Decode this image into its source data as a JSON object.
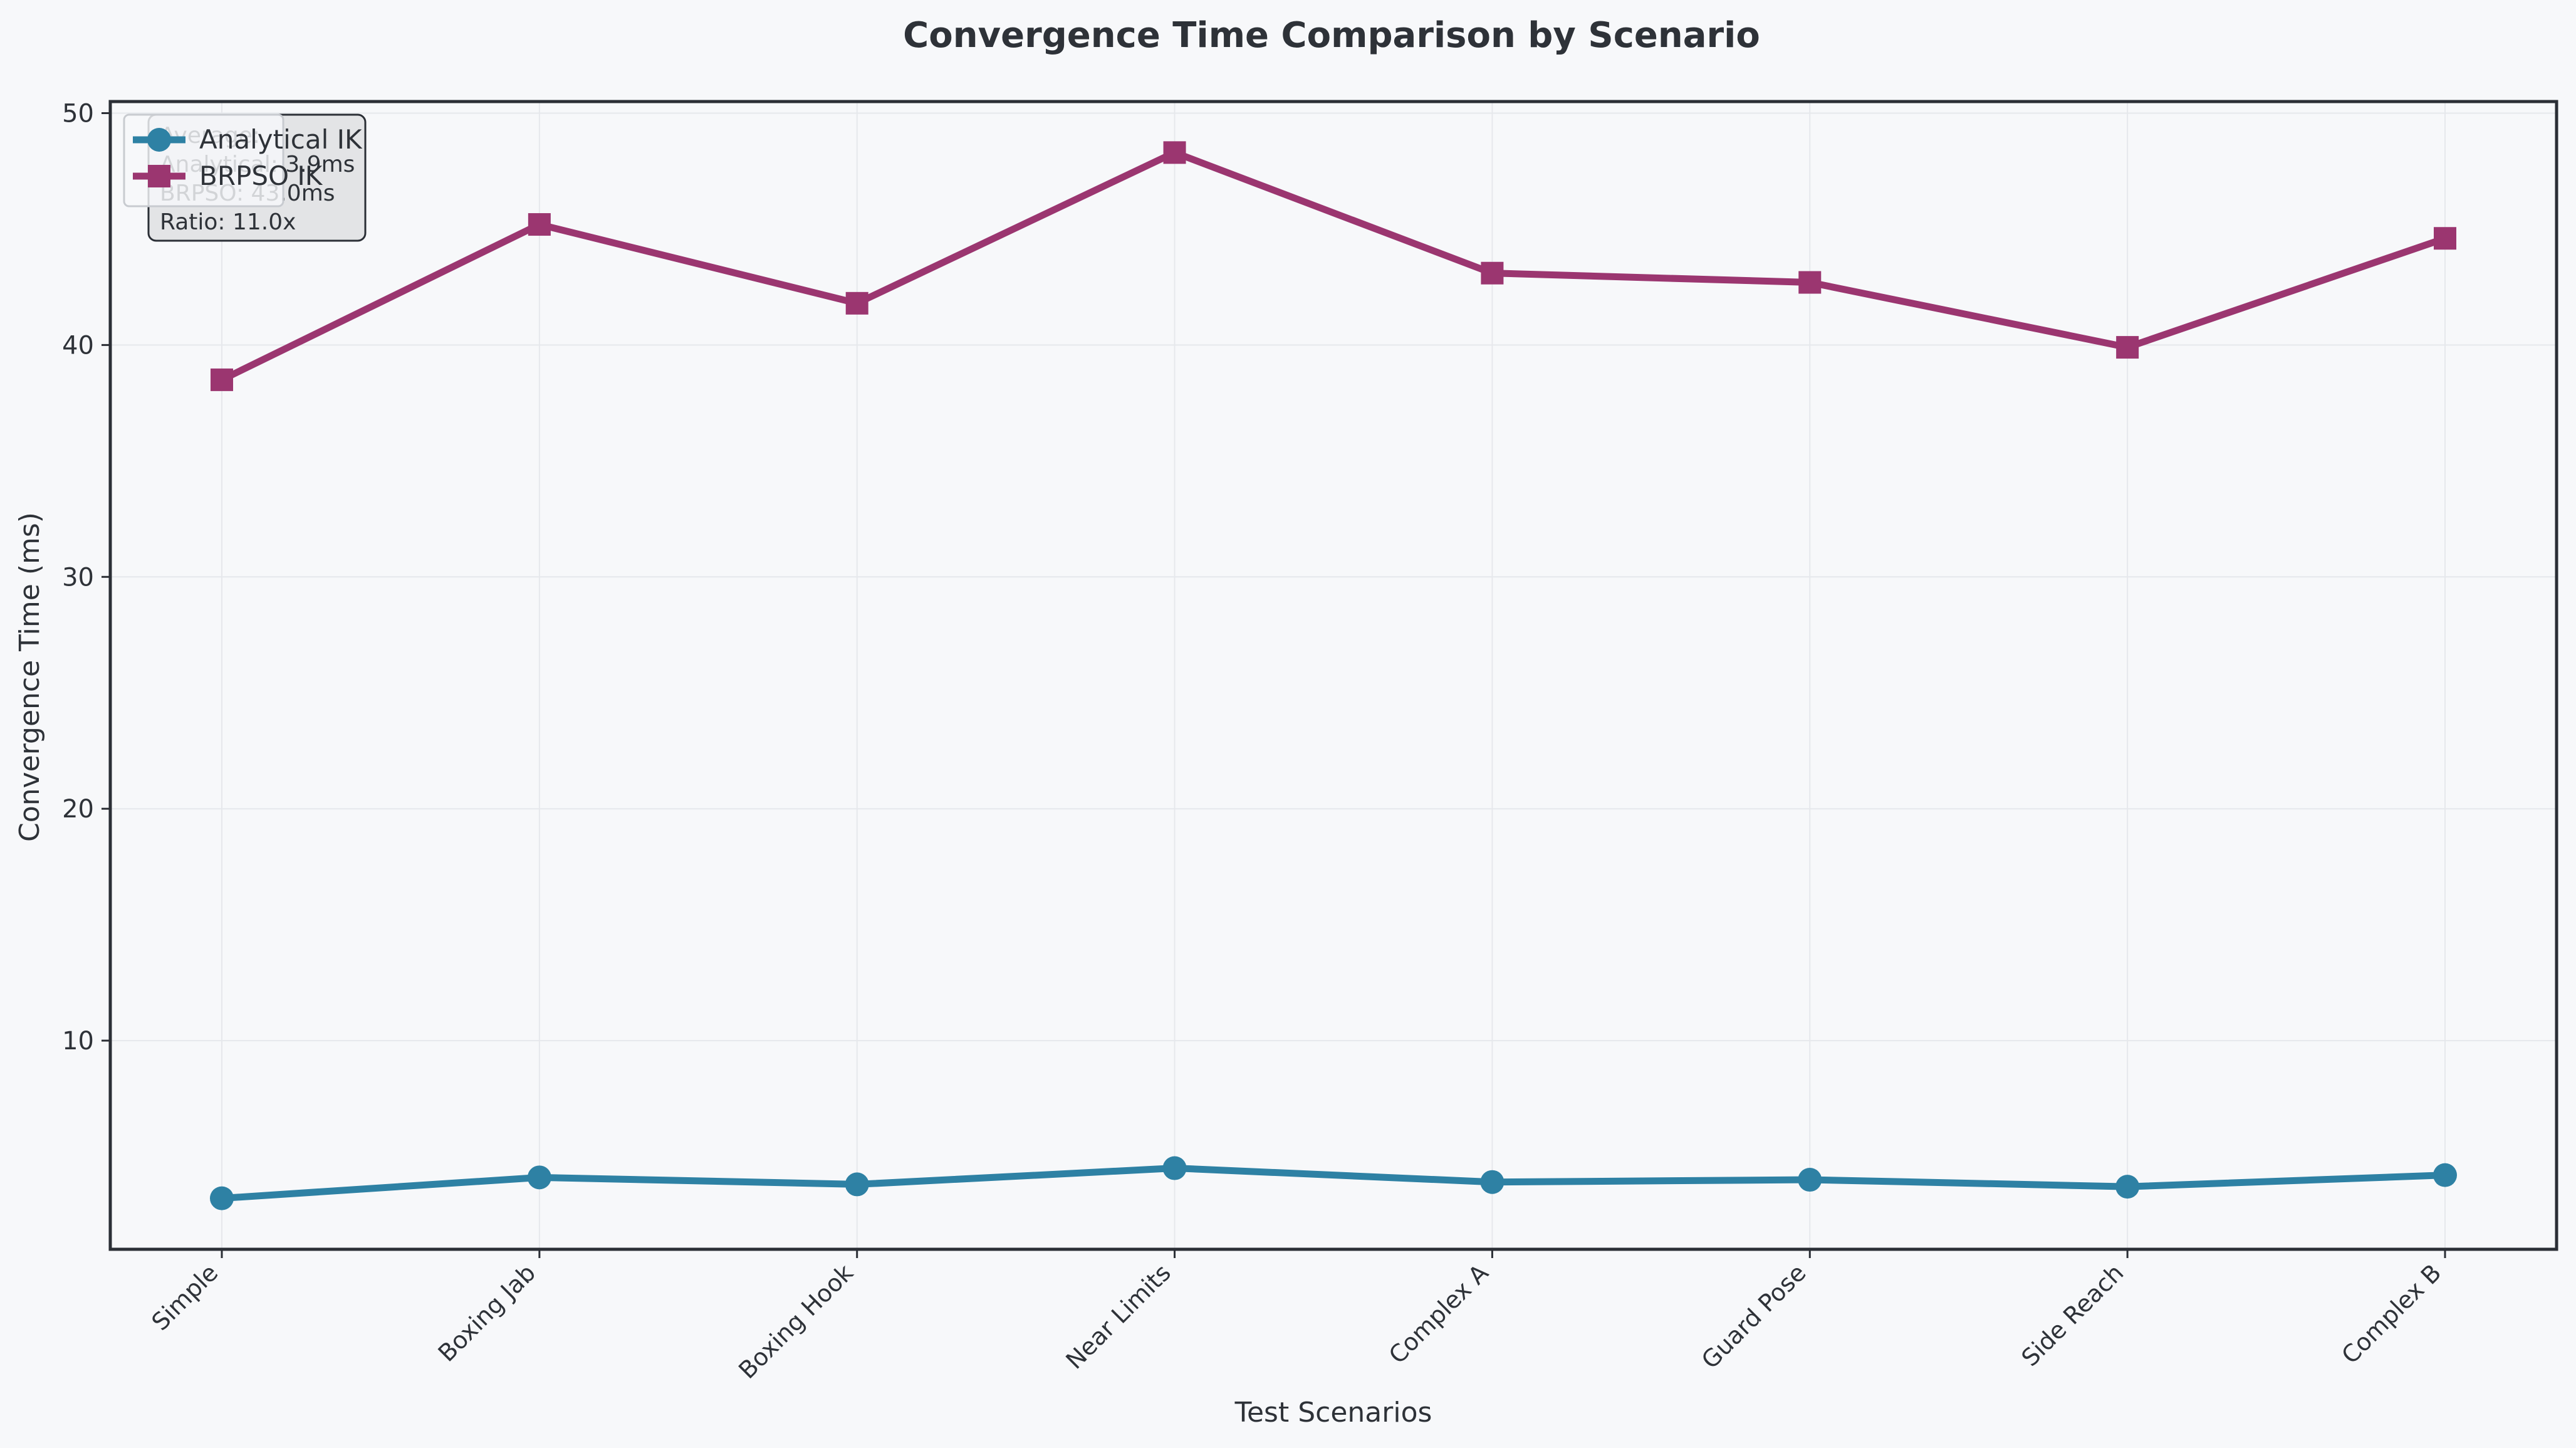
{
  "chart_data": {
    "type": "line",
    "title": "Convergence Time Comparison by Scenario",
    "xlabel": "Test Scenarios",
    "ylabel": "Convergence Time (ms)",
    "categories": [
      "Simple",
      "Boxing Jab",
      "Boxing Hook",
      "Near Limits",
      "Complex A",
      "Guard Pose",
      "Side Reach",
      "Complex B"
    ],
    "ylim": [
      1,
      50.5
    ],
    "yticks": [
      10,
      20,
      30,
      40,
      50
    ],
    "grid": true,
    "legend_position": "top-left",
    "series": [
      {
        "name": "Analytical IK",
        "color": "#2e81a4",
        "marker": "circle",
        "values": [
          3.2,
          4.1,
          3.8,
          4.5,
          3.9,
          4.0,
          3.7,
          4.2
        ]
      },
      {
        "name": "BRPSO IK",
        "color": "#9b3670",
        "marker": "square",
        "values": [
          38.5,
          45.2,
          41.8,
          48.3,
          43.1,
          42.7,
          39.9,
          44.6
        ]
      }
    ],
    "stats_box": {
      "lines": [
        "Average:",
        "Analytical: 3.9ms",
        "BRPSO: 43.0ms",
        "Ratio: 11.0x"
      ]
    }
  }
}
